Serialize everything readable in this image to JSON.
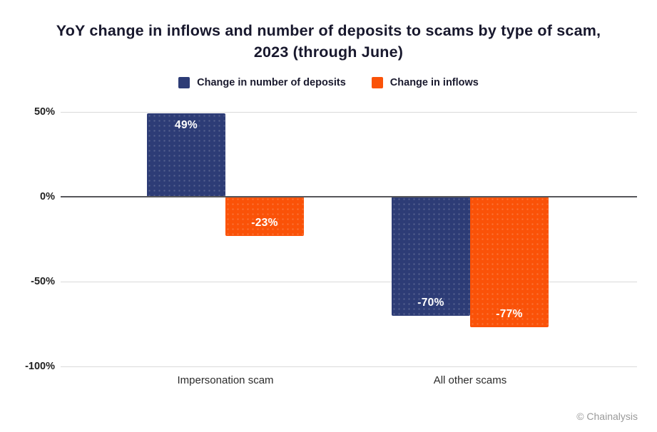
{
  "title": {
    "line1": "YoY change in inflows and number of deposits to scams by type of scam,",
    "line2": "2023 (through June)"
  },
  "footer": {
    "credit": "© Chainalysis"
  },
  "chart_data": {
    "type": "bar",
    "title": "YoY change in inflows and number of deposits to scams by type of scam, 2023 (through June)",
    "categories": [
      "Impersonation scam",
      "All other scams"
    ],
    "series": [
      {
        "name": "Change in number of deposits",
        "color": "#2D3C76",
        "values": [
          49,
          -70
        ],
        "labels": [
          "49%",
          "-70%"
        ]
      },
      {
        "name": "Change in inflows",
        "color": "#FA5208",
        "values": [
          -23,
          -77
        ],
        "labels": [
          "-23%",
          "-77%"
        ]
      }
    ],
    "ylim": [
      -100,
      50
    ],
    "yticks": [
      {
        "value": 50,
        "label": "50%"
      },
      {
        "value": 0,
        "label": "0%"
      },
      {
        "value": -50,
        "label": "-50%"
      },
      {
        "value": -100,
        "label": "-100%"
      }
    ],
    "grid": true,
    "legend_position": "top",
    "colors": {
      "gridline": "#DADADA",
      "zeroline": "#56565A",
      "bar_label": "#FFFFFF",
      "background": "#FFFFFF"
    }
  }
}
